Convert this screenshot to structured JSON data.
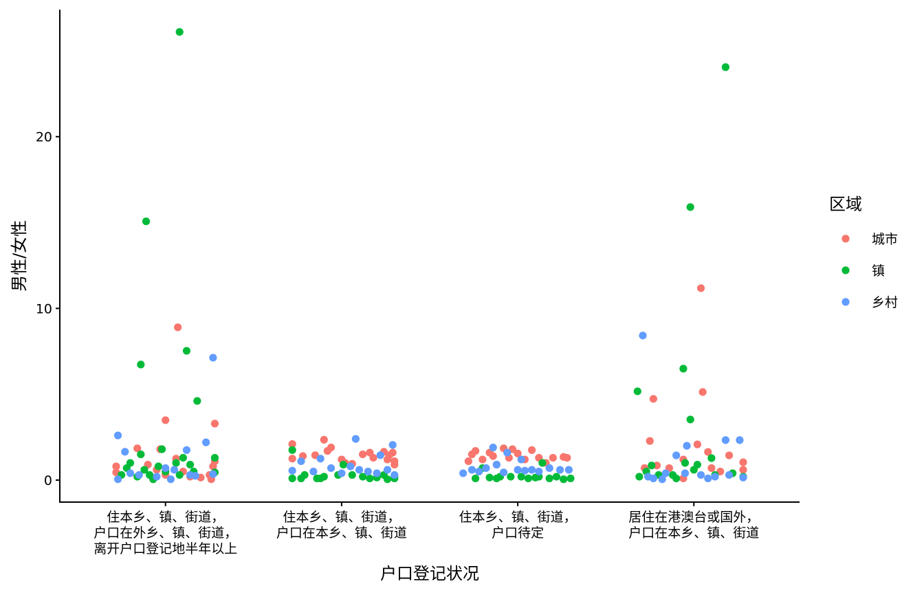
{
  "chart_data": {
    "type": "scatter",
    "subtype": "jitter",
    "title": "",
    "xlabel": "户口登记状况",
    "ylabel": "男性/女性",
    "categories": [
      [
        "住本乡、镇、街道，",
        "户口在外乡、镇、街道，",
        "离开户口登记地半年以上"
      ],
      [
        "住本乡、镇、街道，",
        "户口在本乡、镇、街道"
      ],
      [
        "住本乡、镇、街道，",
        "户口待定"
      ],
      [
        "居住在港澳台或国外，",
        "户口在本乡、镇、街道"
      ]
    ],
    "xlim": [
      0.4,
      4.6
    ],
    "ylim": [
      -1.28,
      27.4
    ],
    "yticks": [
      0,
      10,
      20
    ],
    "grid": false,
    "legend": {
      "title": "区域",
      "placement": "right"
    },
    "series": [
      {
        "name": "城市",
        "color": "#F8766D",
        "points": [
          [
            0.72,
            0.8
          ],
          [
            0.72,
            0.45
          ],
          [
            0.84,
            1.85
          ],
          [
            0.9,
            0.9
          ],
          [
            0.97,
            1.8
          ],
          [
            1.0,
            3.49
          ],
          [
            1.07,
            8.9
          ],
          [
            1.06,
            1.25
          ],
          [
            1.1,
            0.5
          ],
          [
            1.14,
            0.2
          ],
          [
            1.2,
            0.15
          ],
          [
            1.25,
            0.3
          ],
          [
            1.27,
            0.8
          ],
          [
            1.28,
            1.1
          ],
          [
            1.28,
            3.29
          ],
          [
            1.26,
            0.05
          ],
          [
            1.0,
            0.3
          ],
          [
            0.95,
            0.6
          ],
          [
            1.72,
            2.1
          ],
          [
            1.72,
            1.25
          ],
          [
            1.78,
            1.4
          ],
          [
            1.85,
            1.45
          ],
          [
            1.9,
            2.35
          ],
          [
            1.92,
            1.7
          ],
          [
            1.94,
            1.9
          ],
          [
            2.0,
            1.2
          ],
          [
            2.02,
            1.0
          ],
          [
            2.06,
            0.95
          ],
          [
            2.12,
            1.5
          ],
          [
            2.16,
            1.6
          ],
          [
            2.18,
            1.3
          ],
          [
            2.24,
            1.65
          ],
          [
            2.27,
            1.45
          ],
          [
            2.3,
            1.1
          ],
          [
            2.3,
            0.9
          ],
          [
            2.29,
            1.6
          ],
          [
            2.26,
            1.2
          ],
          [
            2.72,
            1.1
          ],
          [
            2.74,
            1.5
          ],
          [
            2.76,
            1.7
          ],
          [
            2.8,
            1.2
          ],
          [
            2.84,
            1.6
          ],
          [
            2.88,
            0.9
          ],
          [
            2.92,
            1.85
          ],
          [
            2.95,
            1.3
          ],
          [
            3.0,
            1.55
          ],
          [
            3.04,
            1.2
          ],
          [
            3.08,
            1.75
          ],
          [
            3.12,
            1.3
          ],
          [
            3.16,
            1.0
          ],
          [
            3.2,
            1.3
          ],
          [
            3.26,
            1.35
          ],
          [
            3.28,
            1.3
          ],
          [
            2.86,
            1.4
          ],
          [
            2.97,
            1.8
          ],
          [
            3.72,
            0.7
          ],
          [
            3.75,
            2.28
          ],
          [
            3.77,
            4.73
          ],
          [
            3.79,
            0.85
          ],
          [
            3.86,
            0.7
          ],
          [
            3.94,
            1.2
          ],
          [
            3.94,
            0.1
          ],
          [
            4.02,
            2.08
          ],
          [
            4.04,
            11.18
          ],
          [
            4.05,
            5.13
          ],
          [
            4.08,
            1.64
          ],
          [
            4.1,
            0.7
          ],
          [
            4.2,
            1.44
          ],
          [
            4.28,
            1.04
          ],
          [
            4.28,
            0.6
          ],
          [
            4.15,
            0.5
          ]
        ]
      },
      {
        "name": "镇",
        "color": "#00BA38",
        "points": [
          [
            0.75,
            0.3
          ],
          [
            0.78,
            0.7
          ],
          [
            0.8,
            1.0
          ],
          [
            0.84,
            0.2
          ],
          [
            0.86,
            1.5
          ],
          [
            0.86,
            6.73
          ],
          [
            0.88,
            0.6
          ],
          [
            0.89,
            15.07
          ],
          [
            0.91,
            0.3
          ],
          [
            0.93,
            0.05
          ],
          [
            0.96,
            0.8
          ],
          [
            0.98,
            1.8
          ],
          [
            1.0,
            0.5
          ],
          [
            1.06,
            1.0
          ],
          [
            1.08,
            26.1
          ],
          [
            1.08,
            0.3
          ],
          [
            1.1,
            1.3
          ],
          [
            1.12,
            7.53
          ],
          [
            1.14,
            0.9
          ],
          [
            1.18,
            4.61
          ],
          [
            1.28,
            1.3
          ],
          [
            1.28,
            0.45
          ],
          [
            1.16,
            0.5
          ],
          [
            1.72,
            1.75
          ],
          [
            1.72,
            0.1
          ],
          [
            1.77,
            0.1
          ],
          [
            1.79,
            0.3
          ],
          [
            1.86,
            0.1
          ],
          [
            1.88,
            0.1
          ],
          [
            1.9,
            0.2
          ],
          [
            1.98,
            0.3
          ],
          [
            2.01,
            0.9
          ],
          [
            2.06,
            0.3
          ],
          [
            2.12,
            0.2
          ],
          [
            2.16,
            0.1
          ],
          [
            2.2,
            0.15
          ],
          [
            2.24,
            0.3
          ],
          [
            2.26,
            0.05
          ],
          [
            2.3,
            0.1
          ],
          [
            2.3,
            0.2
          ],
          [
            2.76,
            0.1
          ],
          [
            2.8,
            0.7
          ],
          [
            2.84,
            0.15
          ],
          [
            2.88,
            0.1
          ],
          [
            2.9,
            0.2
          ],
          [
            2.96,
            0.2
          ],
          [
            3.02,
            0.2
          ],
          [
            3.06,
            0.1
          ],
          [
            3.1,
            0.15
          ],
          [
            3.12,
            0.2
          ],
          [
            3.14,
            1.0
          ],
          [
            3.18,
            0.1
          ],
          [
            3.22,
            0.2
          ],
          [
            3.26,
            0.05
          ],
          [
            3.3,
            0.1
          ],
          [
            3.68,
            5.17
          ],
          [
            3.69,
            0.2
          ],
          [
            3.73,
            0.5
          ],
          [
            3.76,
            0.85
          ],
          [
            3.8,
            0.3
          ],
          [
            3.88,
            0.3
          ],
          [
            3.94,
            6.49
          ],
          [
            3.95,
            1.0
          ],
          [
            3.98,
            15.9
          ],
          [
            3.98,
            3.53
          ],
          [
            4.0,
            0.6
          ],
          [
            4.02,
            0.9
          ],
          [
            4.1,
            1.28
          ],
          [
            4.12,
            0.3
          ],
          [
            4.18,
            24.05
          ],
          [
            4.22,
            0.4
          ],
          [
            4.28,
            0.2
          ],
          [
            3.9,
            0.1
          ]
        ]
      },
      {
        "name": "乡村",
        "color": "#619CFF",
        "points": [
          [
            0.73,
            2.6
          ],
          [
            0.73,
            0.05
          ],
          [
            0.77,
            1.65
          ],
          [
            0.8,
            0.4
          ],
          [
            0.85,
            0.3
          ],
          [
            0.95,
            0.2
          ],
          [
            1.0,
            0.7
          ],
          [
            1.03,
            0.05
          ],
          [
            1.05,
            0.6
          ],
          [
            1.12,
            1.75
          ],
          [
            1.14,
            0.3
          ],
          [
            1.17,
            0.25
          ],
          [
            1.23,
            2.2
          ],
          [
            1.27,
            7.13
          ],
          [
            1.27,
            0.35
          ],
          [
            1.72,
            0.55
          ],
          [
            1.77,
            1.1
          ],
          [
            1.84,
            0.5
          ],
          [
            1.88,
            1.25
          ],
          [
            1.94,
            0.7
          ],
          [
            2.0,
            0.4
          ],
          [
            2.05,
            0.8
          ],
          [
            2.08,
            2.4
          ],
          [
            2.1,
            0.6
          ],
          [
            2.15,
            0.5
          ],
          [
            2.2,
            0.4
          ],
          [
            2.22,
            1.45
          ],
          [
            2.26,
            0.6
          ],
          [
            2.29,
            2.05
          ],
          [
            2.3,
            0.3
          ],
          [
            2.69,
            0.4
          ],
          [
            2.74,
            0.6
          ],
          [
            2.78,
            0.5
          ],
          [
            2.82,
            0.7
          ],
          [
            2.86,
            1.9
          ],
          [
            2.88,
            0.9
          ],
          [
            2.92,
            0.45
          ],
          [
            2.94,
            1.6
          ],
          [
            3.0,
            0.6
          ],
          [
            3.02,
            1.2
          ],
          [
            3.04,
            0.55
          ],
          [
            3.08,
            0.6
          ],
          [
            3.12,
            0.5
          ],
          [
            3.18,
            0.7
          ],
          [
            3.24,
            0.6
          ],
          [
            3.29,
            0.6
          ],
          [
            3.71,
            8.42
          ],
          [
            3.74,
            0.2
          ],
          [
            3.77,
            0.1
          ],
          [
            3.84,
            0.4
          ],
          [
            3.9,
            1.44
          ],
          [
            3.95,
            0.4
          ],
          [
            3.96,
            2.0
          ],
          [
            4.04,
            0.3
          ],
          [
            4.12,
            0.2
          ],
          [
            4.18,
            2.33
          ],
          [
            4.26,
            2.33
          ],
          [
            4.28,
            0.15
          ],
          [
            4.2,
            0.3
          ],
          [
            4.08,
            0.1
          ],
          [
            3.82,
            0.05
          ]
        ]
      }
    ]
  }
}
